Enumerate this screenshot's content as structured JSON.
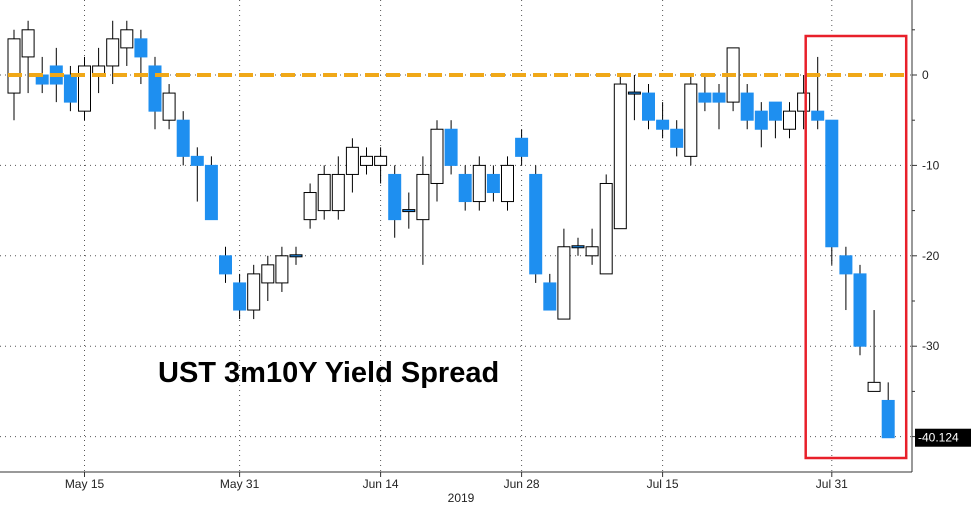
{
  "chart_data": {
    "type": "candlestick",
    "title": "UST 3m10Y Yield Spread",
    "year_label": "2019",
    "x_tick_labels": [
      "May 15",
      "May 31",
      "Jun 14",
      "Jun 28",
      "Jul 15",
      "Jul 31"
    ],
    "y_ticks": [
      0,
      -10,
      -20,
      -30
    ],
    "ylim": [
      -44,
      8
    ],
    "last_value_label": "-40.124",
    "reference_line_value": 0,
    "grid": true,
    "colors": {
      "up": "#ffffff",
      "down": "#1e8ff0",
      "reference_line": "#f0a818",
      "highlight_box": "#e8202a",
      "last_value_bg": "#000000"
    },
    "candles": [
      {
        "date": "May 8",
        "open": -2,
        "close": 4,
        "high": 5,
        "low": -5
      },
      {
        "date": "May 9",
        "open": 2,
        "close": 5,
        "high": 6,
        "low": -2
      },
      {
        "date": "May 10",
        "open": 0,
        "close": -1,
        "high": 2,
        "low": -2
      },
      {
        "date": "May 13",
        "open": 1,
        "close": -1,
        "high": 3,
        "low": -3
      },
      {
        "date": "May 14",
        "open": 0,
        "close": -3,
        "high": 1,
        "low": -4
      },
      {
        "date": "May 15",
        "open": -4,
        "close": 1,
        "high": 2,
        "low": -5
      },
      {
        "date": "May 16",
        "open": 0,
        "close": 1,
        "high": 3,
        "low": -2
      },
      {
        "date": "May 17",
        "open": 1,
        "close": 4,
        "high": 6,
        "low": -1
      },
      {
        "date": "May 20",
        "open": 3,
        "close": 5,
        "high": 6,
        "low": 1
      },
      {
        "date": "May 21",
        "open": 4,
        "close": 2,
        "high": 5,
        "low": -1
      },
      {
        "date": "May 22",
        "open": 1,
        "close": -4,
        "high": 2,
        "low": -6
      },
      {
        "date": "May 23",
        "open": -5,
        "close": -2,
        "high": -1,
        "low": -6
      },
      {
        "date": "May 24",
        "open": -5,
        "close": -9,
        "high": -4,
        "low": -10
      },
      {
        "date": "May 28",
        "open": -9,
        "close": -10,
        "high": -8,
        "low": -14
      },
      {
        "date": "May 29",
        "open": -10,
        "close": -16,
        "high": -9,
        "low": -16
      },
      {
        "date": "May 30",
        "open": -20,
        "close": -22,
        "high": -19,
        "low": -23
      },
      {
        "date": "May 31",
        "open": -23,
        "close": -26,
        "high": -22,
        "low": -27
      },
      {
        "date": "Jun 3",
        "open": -26,
        "close": -22,
        "high": -21,
        "low": -27
      },
      {
        "date": "Jun 4",
        "open": -23,
        "close": -21,
        "high": -20,
        "low": -25
      },
      {
        "date": "Jun 5",
        "open": -23,
        "close": -20,
        "high": -19,
        "low": -24
      },
      {
        "date": "Jun 6",
        "open": -20,
        "close": -20,
        "high": -19,
        "low": -21
      },
      {
        "date": "Jun 7",
        "open": -16,
        "close": -13,
        "high": -12,
        "low": -17
      },
      {
        "date": "Jun 10",
        "open": -15,
        "close": -11,
        "high": -10,
        "low": -16
      },
      {
        "date": "Jun 11",
        "open": -15,
        "close": -11,
        "high": -9,
        "low": -16
      },
      {
        "date": "Jun 12",
        "open": -11,
        "close": -8,
        "high": -7,
        "low": -13
      },
      {
        "date": "Jun 13",
        "open": -10,
        "close": -9,
        "high": -8,
        "low": -11
      },
      {
        "date": "Jun 14",
        "open": -10,
        "close": -9,
        "high": -8,
        "low": -12
      },
      {
        "date": "Jun 17",
        "open": -11,
        "close": -16,
        "high": -10,
        "low": -18
      },
      {
        "date": "Jun 18",
        "open": -15,
        "close": -15,
        "high": -13,
        "low": -17
      },
      {
        "date": "Jun 19",
        "open": -16,
        "close": -11,
        "high": -9,
        "low": -21
      },
      {
        "date": "Jun 20",
        "open": -12,
        "close": -6,
        "high": -5,
        "low": -14
      },
      {
        "date": "Jun 21",
        "open": -6,
        "close": -10,
        "high": -5,
        "low": -11
      },
      {
        "date": "Jun 24",
        "open": -11,
        "close": -14,
        "high": -10,
        "low": -15
      },
      {
        "date": "Jun 25",
        "open": -14,
        "close": -10,
        "high": -9,
        "low": -15
      },
      {
        "date": "Jun 26",
        "open": -11,
        "close": -13,
        "high": -10,
        "low": -14
      },
      {
        "date": "Jun 27",
        "open": -14,
        "close": -10,
        "high": -9,
        "low": -15
      },
      {
        "date": "Jun 28",
        "open": -7,
        "close": -9,
        "high": -6,
        "low": -10
      },
      {
        "date": "Jul 1",
        "open": -11,
        "close": -22,
        "high": -10,
        "low": -23
      },
      {
        "date": "Jul 2",
        "open": -23,
        "close": -26,
        "high": -22,
        "low": -26
      },
      {
        "date": "Jul 3",
        "open": -27,
        "close": -19,
        "high": -17,
        "low": -27
      },
      {
        "date": "Jul 5",
        "open": -19,
        "close": -19,
        "high": -18,
        "low": -20
      },
      {
        "date": "Jul 8",
        "open": -20,
        "close": -19,
        "high": -17,
        "low": -21
      },
      {
        "date": "Jul 9",
        "open": -22,
        "close": -12,
        "high": -11,
        "low": -22
      },
      {
        "date": "Jul 10",
        "open": -17,
        "close": -1,
        "high": 0,
        "low": -17
      },
      {
        "date": "Jul 11",
        "open": -2,
        "close": -2,
        "high": 0,
        "low": -5
      },
      {
        "date": "Jul 12",
        "open": -2,
        "close": -5,
        "high": -1,
        "low": -6
      },
      {
        "date": "Jul 15",
        "open": -5,
        "close": -6,
        "high": -3,
        "low": -7
      },
      {
        "date": "Jul 16",
        "open": -6,
        "close": -8,
        "high": -5,
        "low": -9
      },
      {
        "date": "Jul 17",
        "open": -9,
        "close": -1,
        "high": 0,
        "low": -10
      },
      {
        "date": "Jul 18",
        "open": -2,
        "close": -3,
        "high": 0,
        "low": -4
      },
      {
        "date": "Jul 19",
        "open": -2,
        "close": -3,
        "high": -1,
        "low": -6
      },
      {
        "date": "Jul 22",
        "open": -3,
        "close": 3,
        "high": 3,
        "low": -4
      },
      {
        "date": "Jul 23",
        "open": -2,
        "close": -5,
        "high": -1,
        "low": -6
      },
      {
        "date": "Jul 24",
        "open": -4,
        "close": -6,
        "high": -3,
        "low": -8
      },
      {
        "date": "Jul 25",
        "open": -3,
        "close": -5,
        "high": -3,
        "low": -7
      },
      {
        "date": "Jul 26",
        "open": -6,
        "close": -4,
        "high": -3,
        "low": -7
      },
      {
        "date": "Jul 29",
        "open": -4,
        "close": -2,
        "high": 0,
        "low": -6
      },
      {
        "date": "Jul 30",
        "open": -4,
        "close": -5,
        "high": 2,
        "low": -6
      },
      {
        "date": "Jul 31",
        "open": -5,
        "close": -19,
        "high": -5,
        "low": -21
      },
      {
        "date": "Aug 1",
        "open": -20,
        "close": -22,
        "high": -19,
        "low": -26
      },
      {
        "date": "Aug 2",
        "open": -22,
        "close": -30,
        "high": -21,
        "low": -31
      },
      {
        "date": "Aug 5",
        "open": -35,
        "close": -34,
        "high": -26,
        "low": -35
      },
      {
        "date": "Aug 6",
        "open": -36,
        "close": -40.124,
        "high": -34,
        "low": -40.124
      }
    ]
  }
}
